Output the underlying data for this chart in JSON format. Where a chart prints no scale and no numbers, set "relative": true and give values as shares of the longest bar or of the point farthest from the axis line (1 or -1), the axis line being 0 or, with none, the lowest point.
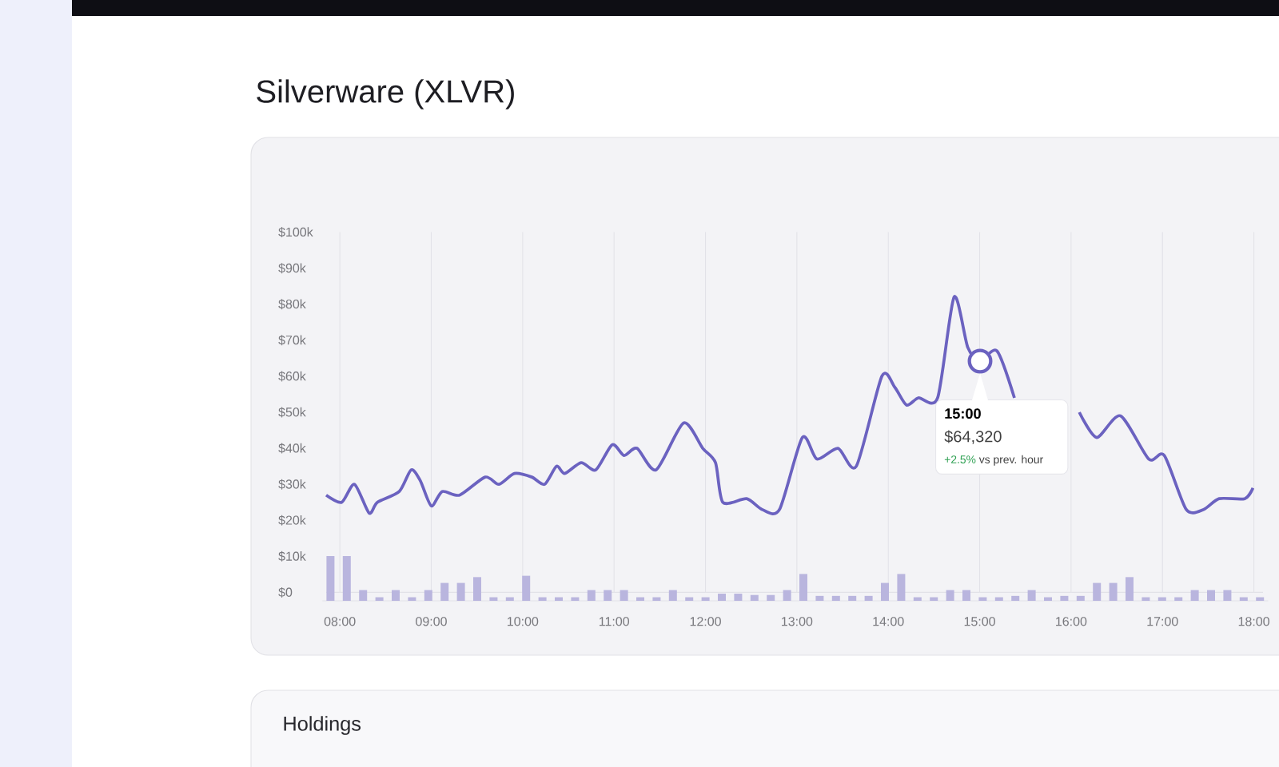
{
  "chart_data": [
    {
      "type": "line",
      "title": "Silverware (XLVR)",
      "x": [
        7.85,
        8.02,
        8.16,
        8.32,
        8.41,
        8.65,
        8.78,
        8.88,
        9.0,
        9.12,
        9.31,
        9.59,
        9.74,
        9.91,
        10.1,
        10.24,
        10.37,
        10.46,
        10.64,
        10.8,
        10.98,
        11.11,
        11.25,
        11.46,
        11.76,
        11.97,
        12.11,
        12.19,
        12.45,
        12.62,
        12.81,
        13.06,
        13.22,
        13.45,
        13.65,
        13.93,
        14.07,
        14.2,
        14.33,
        14.54,
        14.72,
        14.87,
        15.0,
        15.19,
        15.38,
        15.55,
        15.72,
        15.86,
        16.09,
        16.28,
        16.54,
        16.85,
        17.02,
        17.26,
        17.45,
        17.62,
        17.9,
        17.99
      ],
      "series": [
        {
          "color": "#6b62c0",
          "values": [
            27,
            25,
            30,
            22,
            25,
            28,
            34,
            31,
            24,
            28,
            27,
            32,
            30,
            33,
            32,
            30,
            35,
            33,
            36,
            34,
            41,
            38,
            40,
            34,
            47,
            40,
            36,
            25,
            26,
            23,
            23,
            43,
            37,
            40,
            35,
            60,
            57,
            52,
            54,
            54,
            82,
            68,
            64.32,
            67,
            54,
            null,
            null,
            null,
            50,
            43,
            49,
            37,
            38,
            23,
            23,
            26,
            26,
            29
          ]
        }
      ],
      "xlim": [
        7.85,
        18.1
      ],
      "xticks": [
        {
          "value": 8,
          "label": "08:00"
        },
        {
          "value": 9,
          "label": "09:00"
        },
        {
          "value": 10,
          "label": "10:00"
        },
        {
          "value": 11,
          "label": "11:00"
        },
        {
          "value": 12,
          "label": "12:00"
        },
        {
          "value": 13,
          "label": "13:00"
        },
        {
          "value": 14,
          "label": "14:00"
        },
        {
          "value": 15,
          "label": "15:00"
        },
        {
          "value": 16,
          "label": "16:00"
        },
        {
          "value": 17,
          "label": "17:00"
        },
        {
          "value": 18,
          "label": "18:00"
        }
      ],
      "ylim": [
        0,
        100
      ],
      "yticks": [
        {
          "value": 0,
          "label": "$0"
        },
        {
          "value": 10,
          "label": "$10k"
        },
        {
          "value": 20,
          "label": "$20k"
        },
        {
          "value": 30,
          "label": "$30k"
        },
        {
          "value": 40,
          "label": "$40k"
        },
        {
          "value": 50,
          "label": "$50k"
        },
        {
          "value": 60,
          "label": "$60k"
        },
        {
          "value": 70,
          "label": "$70k"
        },
        {
          "value": 80,
          "label": "$80k"
        },
        {
          "value": 90,
          "label": "$90k"
        },
        {
          "value": 100,
          "label": "$100k"
        }
      ],
      "grid": "x",
      "line_style": "solid",
      "annotations": [
        "15:00",
        "$64,320",
        "+2.5%",
        "vs prev. hour",
        "Holdings"
      ]
    },
    {
      "type": "bar",
      "relative": true,
      "color": "#b9b5de",
      "categories": [
        null,
        null,
        null,
        null,
        null,
        null,
        null,
        null,
        null,
        null,
        null,
        null,
        null,
        null,
        null,
        null,
        null,
        null,
        null,
        null,
        null,
        null,
        null,
        null,
        null,
        null,
        null,
        null,
        null,
        null,
        null,
        null,
        null,
        null,
        null,
        null,
        null,
        null,
        null,
        null,
        null,
        null,
        null,
        null,
        null,
        null,
        null,
        null,
        null,
        null,
        null,
        null,
        null,
        null,
        null,
        null,
        null,
        null
      ],
      "values": [
        1,
        1,
        0.24,
        0.08,
        0.24,
        0.08,
        0.24,
        0.4,
        0.4,
        0.53,
        0.08,
        0.08,
        0.56,
        0.08,
        0.08,
        0.08,
        0.24,
        0.24,
        0.24,
        0.08,
        0.08,
        0.24,
        0.08,
        0.08,
        0.16,
        0.16,
        0.13,
        0.13,
        0.24,
        0.6,
        0.11,
        0.11,
        0.11,
        0.11,
        0.4,
        0.6,
        0.08,
        0.08,
        0.24,
        0.24,
        0.08,
        0.08,
        0.11,
        0.24,
        0.08,
        0.11,
        0.11,
        0.4,
        0.4,
        0.53,
        0.08,
        0.08,
        0.08,
        0.24,
        0.24,
        0.24,
        0.08,
        0.08
      ]
    }
  ]
}
